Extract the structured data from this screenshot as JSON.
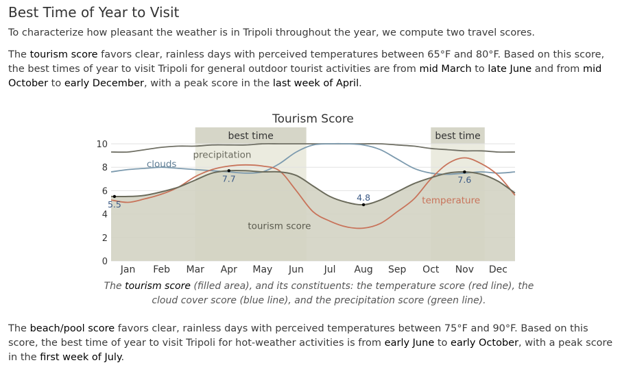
{
  "page": {
    "title": "Best Time of Year to Visit",
    "intro": "To characterize how pleasant the weather is in Tripoli throughout the year, we compute two travel scores.",
    "tourism_paragraph": {
      "t1": "The ",
      "b1": "tourism score",
      "t2": " favors clear, rainless days with perceived temperatures between 65°F and 80°F. Based on this score, the best times of year to visit Tripoli for general outdoor tourist activities are from ",
      "b2": "mid March",
      "t3": " to ",
      "b3": "late June",
      "t4": " and from ",
      "b4": "mid October",
      "t5": " to ",
      "b5": "early December",
      "t6": ", with a peak score in the ",
      "b6": "last week of April",
      "t7": "."
    },
    "caption": {
      "t1": "The ",
      "b1": "tourism score",
      "t2": " (filled area), and its constituents: the temperature score (red line), the cloud cover score (blue line), and the precipitation score (green line)."
    },
    "beach_paragraph": {
      "t1": "The ",
      "b1": "beach/pool score",
      "t2": " favors clear, rainless days with perceived temperatures between 75°F and 90°F. Based on this score, the best time of year to visit Tripoli for hot-weather activities is from ",
      "b2": "early June",
      "t3": " to ",
      "b3": "early October",
      "t4": ", with a peak score in the ",
      "b4": "first week of July",
      "t5": "."
    }
  },
  "chart_data": {
    "type": "area",
    "title": "Tourism Score",
    "months": [
      "Jan",
      "Feb",
      "Mar",
      "Apr",
      "May",
      "Jun",
      "Jul",
      "Aug",
      "Sep",
      "Oct",
      "Nov",
      "Dec"
    ],
    "ylim": [
      0,
      10
    ],
    "yticks": [
      0,
      2,
      4,
      6,
      8,
      10
    ],
    "best_time_bands": [
      {
        "label": "best time",
        "start_month": 2.5,
        "end_month": 5.8
      },
      {
        "label": "best time",
        "start_month": 9.5,
        "end_month": 11.1
      }
    ],
    "series": [
      {
        "name": "tourism score",
        "kind": "filled-area",
        "color": "#6b6b5b",
        "fill": "#d2d2c2",
        "x": [
          0,
          0.5,
          1,
          1.5,
          2,
          2.5,
          3,
          3.5,
          4,
          4.5,
          5,
          5.5,
          6,
          6.5,
          7,
          7.5,
          8,
          8.5,
          9,
          9.5,
          10,
          10.5,
          11,
          11.5,
          12
        ],
        "y": [
          5.5,
          5.5,
          5.6,
          5.9,
          6.3,
          6.9,
          7.5,
          7.7,
          7.7,
          7.6,
          7.6,
          7.3,
          6.4,
          5.5,
          5.0,
          4.8,
          5.2,
          5.9,
          6.6,
          7.1,
          7.5,
          7.6,
          7.4,
          6.8,
          5.8
        ]
      },
      {
        "name": "temperature",
        "kind": "line",
        "color": "#c8735a",
        "x": [
          0,
          0.5,
          1,
          1.5,
          2,
          2.5,
          3,
          3.5,
          4,
          4.5,
          5,
          5.5,
          6,
          6.5,
          7,
          7.5,
          8,
          8.5,
          9,
          9.5,
          10,
          10.5,
          11,
          11.5,
          12
        ],
        "y": [
          5.2,
          5.0,
          5.3,
          5.7,
          6.3,
          7.2,
          7.8,
          8.1,
          8.2,
          8.1,
          7.7,
          6.0,
          4.2,
          3.4,
          2.9,
          2.8,
          3.2,
          4.2,
          5.3,
          7.0,
          8.3,
          8.8,
          8.3,
          7.3,
          5.6
        ]
      },
      {
        "name": "clouds",
        "kind": "line",
        "color": "#7c9aae",
        "x": [
          0,
          0.5,
          1,
          1.5,
          2,
          2.5,
          3,
          3.5,
          4,
          4.5,
          5,
          5.5,
          6,
          6.5,
          7,
          7.5,
          8,
          8.5,
          9,
          9.5,
          10,
          10.5,
          11,
          11.5,
          12
        ],
        "y": [
          7.6,
          7.8,
          7.9,
          8.0,
          7.9,
          7.8,
          7.7,
          7.6,
          7.5,
          7.6,
          8.3,
          9.3,
          9.9,
          10.0,
          10.0,
          9.9,
          9.5,
          8.7,
          7.9,
          7.5,
          7.4,
          7.5,
          7.6,
          7.5,
          7.6
        ]
      },
      {
        "name": "precipitation",
        "kind": "line",
        "color": "#6f6f64",
        "x": [
          0,
          0.5,
          1,
          1.5,
          2,
          2.5,
          3,
          3.5,
          4,
          4.5,
          5,
          5.5,
          6,
          6.5,
          7,
          7.5,
          8,
          8.5,
          9,
          9.5,
          10,
          10.5,
          11,
          11.5,
          12
        ],
        "y": [
          9.3,
          9.3,
          9.5,
          9.7,
          9.8,
          9.8,
          9.9,
          9.9,
          9.9,
          10.0,
          10.0,
          10.0,
          10.0,
          10.0,
          10.0,
          10.0,
          10.0,
          9.9,
          9.8,
          9.6,
          9.5,
          9.4,
          9.4,
          9.3,
          9.3
        ]
      }
    ],
    "annotations": [
      {
        "text": "5.5",
        "month": 0.1,
        "value": 5.5,
        "kind": "value"
      },
      {
        "text": "7.7",
        "month": 3.5,
        "value": 7.7,
        "kind": "value"
      },
      {
        "text": "4.8",
        "month": 7.5,
        "value": 4.8,
        "kind": "value"
      },
      {
        "text": "7.6",
        "month": 10.5,
        "value": 7.6,
        "kind": "value"
      }
    ],
    "series_labels": [
      {
        "text": "clouds",
        "month": 1.5,
        "value": 8.3,
        "color": "#5f7d94"
      },
      {
        "text": "precipitation",
        "month": 3.3,
        "value": 9.1,
        "color": "#6a6a5e"
      },
      {
        "text": "temperature",
        "month": 10.1,
        "value": 5.2,
        "color": "#c8735a"
      },
      {
        "text": "tourism score",
        "month": 5.0,
        "value": 3.0,
        "color": "#5a5a4e"
      }
    ]
  }
}
